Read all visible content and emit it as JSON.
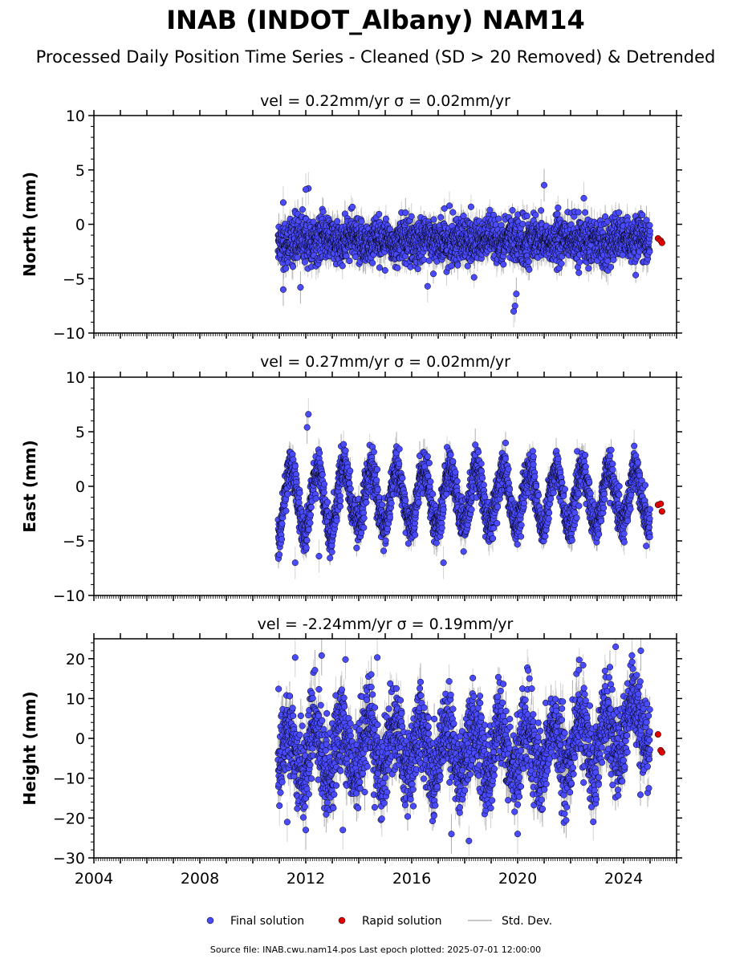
{
  "header": {
    "title": "INAB (INDOT_Albany) NAM14",
    "subtitle": "Processed Daily Position Time Series - Cleaned (SD > 20 Removed) & Detrended"
  },
  "legend": {
    "final_label": "Final solution",
    "rapid_label": "Rapid solution",
    "sd_label": "Std. Dev."
  },
  "footer": {
    "source": "Source file: INAB.cwu.nam14.pos  Last epoch plotted: 2025-07-01 12:00:00"
  },
  "colors": {
    "final": "#4a4aff",
    "rapid": "#e00000",
    "sd": "#c8c8c8",
    "marker_edge": "#000000"
  },
  "chart_data": [
    {
      "type": "scatter",
      "vel_label": "vel = 0.22mm/yr   σ = 0.02mm/yr",
      "ylabel": "North (mm)",
      "xlim": [
        2004,
        2026
      ],
      "ylim": [
        -10,
        10
      ],
      "yticks": [
        -10,
        -5,
        0,
        5,
        10
      ],
      "ytick_labels": [
        "−10",
        "−5",
        "0",
        "5",
        "10"
      ],
      "xticks": [
        2004,
        2008,
        2012,
        2016,
        2020,
        2024
      ],
      "xtick_labels": [],
      "series": [
        {
          "kind": "final",
          "x": [
            2011.0,
            2011.2,
            2011.5,
            2011.8,
            2012.0,
            2012.3,
            2012.6,
            2013.0,
            2013.4,
            2013.7,
            2014.0,
            2014.4,
            2014.8,
            2015.0,
            2015.4,
            2015.8,
            2016.1,
            2016.5,
            2016.9,
            2017.2,
            2017.6,
            2018.0,
            2018.4,
            2018.8,
            2019.1,
            2019.5,
            2019.9,
            2020.2,
            2020.5,
            2020.8,
            2021.1,
            2021.5,
            2021.9,
            2022.3,
            2022.7,
            2023.0,
            2023.4,
            2023.8,
            2024.2,
            2024.6,
            2024.9
          ],
          "y": [
            -1.5,
            -2.0,
            -1.2,
            -1.8,
            -1.0,
            -1.6,
            -2.2,
            -1.4,
            -1.0,
            -1.8,
            -1.3,
            -1.9,
            -1.2,
            -1.6,
            -1.1,
            -1.7,
            -1.3,
            -1.9,
            -1.4,
            -1.2,
            -1.6,
            -1.0,
            -1.5,
            -1.8,
            -1.2,
            -1.7,
            -1.4,
            -1.9,
            -1.3,
            -2.1,
            -1.5,
            -1.2,
            -1.8,
            -1.4,
            -1.6,
            -1.3,
            -1.7,
            -1.5,
            -1.4,
            -1.6,
            -1.8
          ],
          "extremes": [
            [
              2011.15,
              2.0
            ],
            [
              2011.15,
              -6.0
            ],
            [
              2012.1,
              3.3
            ],
            [
              2012.0,
              3.2
            ],
            [
              2021.0,
              3.6
            ],
            [
              2019.85,
              -8.0
            ],
            [
              2019.9,
              -7.5
            ],
            [
              2019.95,
              -6.4
            ],
            [
              2022.5,
              2.4
            ],
            [
              2016.6,
              -5.7
            ],
            [
              2011.8,
              -5.8
            ]
          ]
        },
        {
          "kind": "rapid",
          "x": [
            2025.3,
            2025.4,
            2025.45
          ],
          "y": [
            -1.3,
            -1.5,
            -1.7
          ]
        }
      ]
    },
    {
      "type": "scatter",
      "vel_label": "vel = 0.27mm/yr   σ = 0.02mm/yr",
      "ylabel": "East (mm)",
      "xlim": [
        2004,
        2026
      ],
      "ylim": [
        -10,
        10
      ],
      "yticks": [
        -10,
        -5,
        0,
        5,
        10
      ],
      "ytick_labels": [
        "−10",
        "−5",
        "0",
        "5",
        "10"
      ],
      "xticks": [
        2004,
        2008,
        2012,
        2016,
        2020,
        2024
      ],
      "xtick_labels": [],
      "series": [
        {
          "kind": "final",
          "seasonal_amplitude": 2.6,
          "x_start": 2010.95,
          "x_end": 2025.0,
          "mean": -1.0,
          "extremes": [
            [
              2012.1,
              6.6
            ],
            [
              2012.05,
              5.4
            ],
            [
              2011.6,
              -7.0
            ],
            [
              2012.5,
              -6.4
            ],
            [
              2018.4,
              3.8
            ],
            [
              2017.2,
              -7.0
            ],
            [
              2024.4,
              3.7
            ]
          ]
        },
        {
          "kind": "rapid",
          "x": [
            2025.3,
            2025.4,
            2025.45
          ],
          "y": [
            -1.7,
            -1.6,
            -2.3
          ]
        }
      ]
    },
    {
      "type": "scatter",
      "vel_label": "vel = -2.24mm/yr   σ = 0.19mm/yr",
      "ylabel": "Height (mm)",
      "xlim": [
        2004,
        2026
      ],
      "ylim": [
        -30,
        25
      ],
      "yticks": [
        -30,
        -20,
        -10,
        0,
        10,
        20
      ],
      "ytick_labels": [
        "−30",
        "−20",
        "−10",
        "0",
        "10",
        "20"
      ],
      "xticks": [
        2004,
        2008,
        2012,
        2016,
        2020,
        2024
      ],
      "xtick_labels": [
        "2004",
        "2008",
        "2012",
        "2016",
        "2020",
        "2024"
      ],
      "series": [
        {
          "kind": "final",
          "seasonal_amplitude": 6,
          "x_start": 2010.95,
          "x_end": 2025.0,
          "mean": -3.0,
          "extremes": [
            [
              2011.6,
              20.3
            ],
            [
              2012.6,
              20.8
            ],
            [
              2014.7,
              20.3
            ],
            [
              2013.5,
              19.8
            ],
            [
              2024.65,
              22.0
            ],
            [
              2023.7,
              23.0
            ],
            [
              2011.3,
              -21.0
            ],
            [
              2012.0,
              -23.0
            ],
            [
              2013.4,
              -23.0
            ],
            [
              2020.0,
              -24.0
            ],
            [
              2017.5,
              -24.0
            ]
          ]
        },
        {
          "kind": "rapid",
          "x": [
            2025.3,
            2025.4,
            2025.45
          ],
          "y": [
            1.0,
            -3.0,
            -3.5
          ]
        }
      ]
    }
  ]
}
